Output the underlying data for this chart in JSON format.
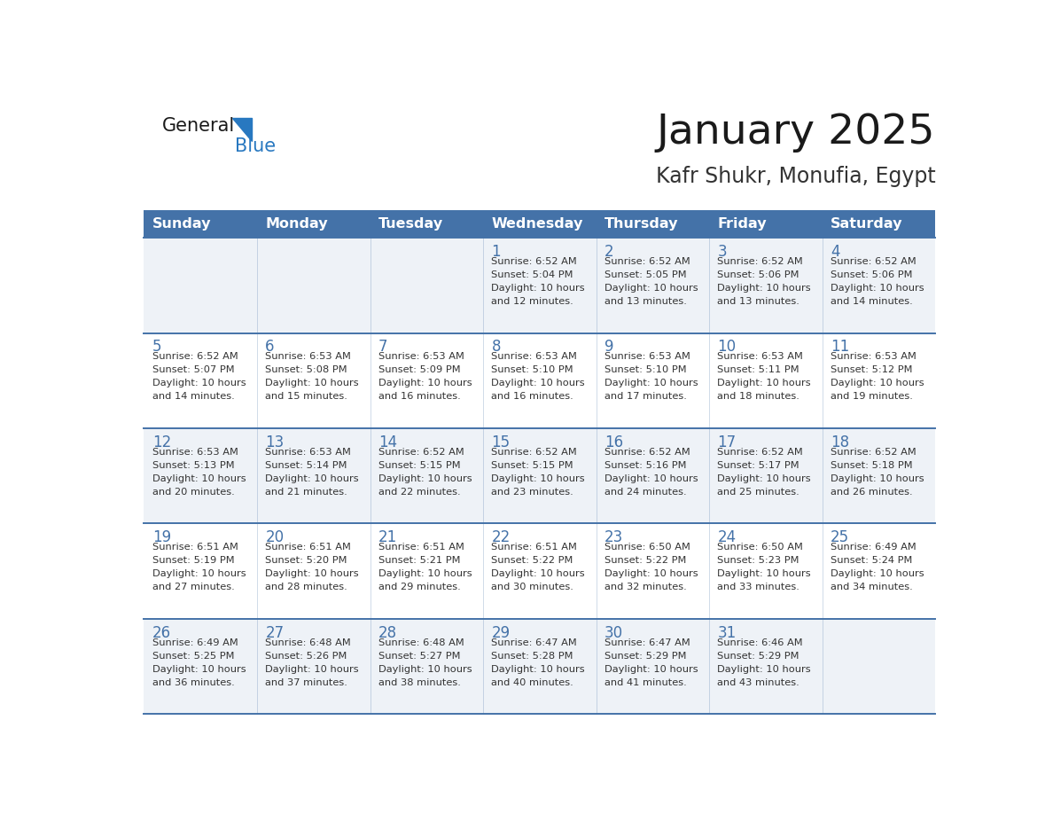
{
  "title": "January 2025",
  "subtitle": "Kafr Shukr, Monufia, Egypt",
  "days_of_week": [
    "Sunday",
    "Monday",
    "Tuesday",
    "Wednesday",
    "Thursday",
    "Friday",
    "Saturday"
  ],
  "header_bg": "#4472a8",
  "header_text_color": "#ffffff",
  "odd_row_bg": "#eef2f7",
  "even_row_bg": "#ffffff",
  "line_color": "#4472a8",
  "day_number_color": "#4472a8",
  "cell_text_color": "#333333",
  "title_color": "#1a1a1a",
  "subtitle_color": "#333333",
  "logo_general_color": "#1a1a1a",
  "logo_blue_color": "#2878c0",
  "calendar_data": [
    [
      {
        "day": "",
        "sunrise": "",
        "sunset": "",
        "daylight": ""
      },
      {
        "day": "",
        "sunrise": "",
        "sunset": "",
        "daylight": ""
      },
      {
        "day": "",
        "sunrise": "",
        "sunset": "",
        "daylight": ""
      },
      {
        "day": "1",
        "sunrise": "6:52 AM",
        "sunset": "5:04 PM",
        "daylight": "10 hours and 12 minutes."
      },
      {
        "day": "2",
        "sunrise": "6:52 AM",
        "sunset": "5:05 PM",
        "daylight": "10 hours and 13 minutes."
      },
      {
        "day": "3",
        "sunrise": "6:52 AM",
        "sunset": "5:06 PM",
        "daylight": "10 hours and 13 minutes."
      },
      {
        "day": "4",
        "sunrise": "6:52 AM",
        "sunset": "5:06 PM",
        "daylight": "10 hours and 14 minutes."
      }
    ],
    [
      {
        "day": "5",
        "sunrise": "6:52 AM",
        "sunset": "5:07 PM",
        "daylight": "10 hours and 14 minutes."
      },
      {
        "day": "6",
        "sunrise": "6:53 AM",
        "sunset": "5:08 PM",
        "daylight": "10 hours and 15 minutes."
      },
      {
        "day": "7",
        "sunrise": "6:53 AM",
        "sunset": "5:09 PM",
        "daylight": "10 hours and 16 minutes."
      },
      {
        "day": "8",
        "sunrise": "6:53 AM",
        "sunset": "5:10 PM",
        "daylight": "10 hours and 16 minutes."
      },
      {
        "day": "9",
        "sunrise": "6:53 AM",
        "sunset": "5:10 PM",
        "daylight": "10 hours and 17 minutes."
      },
      {
        "day": "10",
        "sunrise": "6:53 AM",
        "sunset": "5:11 PM",
        "daylight": "10 hours and 18 minutes."
      },
      {
        "day": "11",
        "sunrise": "6:53 AM",
        "sunset": "5:12 PM",
        "daylight": "10 hours and 19 minutes."
      }
    ],
    [
      {
        "day": "12",
        "sunrise": "6:53 AM",
        "sunset": "5:13 PM",
        "daylight": "10 hours and 20 minutes."
      },
      {
        "day": "13",
        "sunrise": "6:53 AM",
        "sunset": "5:14 PM",
        "daylight": "10 hours and 21 minutes."
      },
      {
        "day": "14",
        "sunrise": "6:52 AM",
        "sunset": "5:15 PM",
        "daylight": "10 hours and 22 minutes."
      },
      {
        "day": "15",
        "sunrise": "6:52 AM",
        "sunset": "5:15 PM",
        "daylight": "10 hours and 23 minutes."
      },
      {
        "day": "16",
        "sunrise": "6:52 AM",
        "sunset": "5:16 PM",
        "daylight": "10 hours and 24 minutes."
      },
      {
        "day": "17",
        "sunrise": "6:52 AM",
        "sunset": "5:17 PM",
        "daylight": "10 hours and 25 minutes."
      },
      {
        "day": "18",
        "sunrise": "6:52 AM",
        "sunset": "5:18 PM",
        "daylight": "10 hours and 26 minutes."
      }
    ],
    [
      {
        "day": "19",
        "sunrise": "6:51 AM",
        "sunset": "5:19 PM",
        "daylight": "10 hours and 27 minutes."
      },
      {
        "day": "20",
        "sunrise": "6:51 AM",
        "sunset": "5:20 PM",
        "daylight": "10 hours and 28 minutes."
      },
      {
        "day": "21",
        "sunrise": "6:51 AM",
        "sunset": "5:21 PM",
        "daylight": "10 hours and 29 minutes."
      },
      {
        "day": "22",
        "sunrise": "6:51 AM",
        "sunset": "5:22 PM",
        "daylight": "10 hours and 30 minutes."
      },
      {
        "day": "23",
        "sunrise": "6:50 AM",
        "sunset": "5:22 PM",
        "daylight": "10 hours and 32 minutes."
      },
      {
        "day": "24",
        "sunrise": "6:50 AM",
        "sunset": "5:23 PM",
        "daylight": "10 hours and 33 minutes."
      },
      {
        "day": "25",
        "sunrise": "6:49 AM",
        "sunset": "5:24 PM",
        "daylight": "10 hours and 34 minutes."
      }
    ],
    [
      {
        "day": "26",
        "sunrise": "6:49 AM",
        "sunset": "5:25 PM",
        "daylight": "10 hours and 36 minutes."
      },
      {
        "day": "27",
        "sunrise": "6:48 AM",
        "sunset": "5:26 PM",
        "daylight": "10 hours and 37 minutes."
      },
      {
        "day": "28",
        "sunrise": "6:48 AM",
        "sunset": "5:27 PM",
        "daylight": "10 hours and 38 minutes."
      },
      {
        "day": "29",
        "sunrise": "6:47 AM",
        "sunset": "5:28 PM",
        "daylight": "10 hours and 40 minutes."
      },
      {
        "day": "30",
        "sunrise": "6:47 AM",
        "sunset": "5:29 PM",
        "daylight": "10 hours and 41 minutes."
      },
      {
        "day": "31",
        "sunrise": "6:46 AM",
        "sunset": "5:29 PM",
        "daylight": "10 hours and 43 minutes."
      },
      {
        "day": "",
        "sunrise": "",
        "sunset": "",
        "daylight": ""
      }
    ]
  ]
}
